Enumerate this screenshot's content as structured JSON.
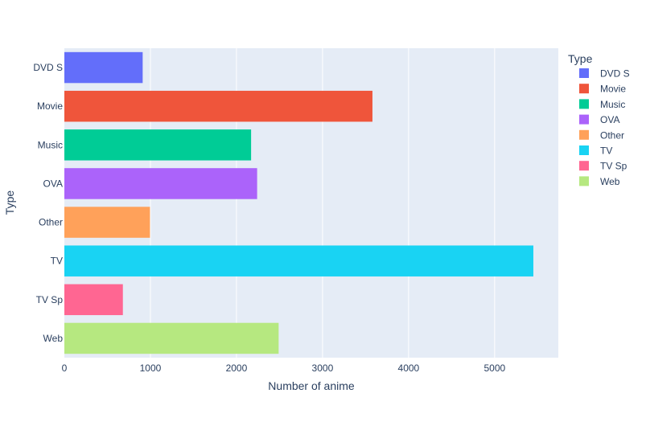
{
  "chart_data": {
    "type": "bar",
    "orientation": "horizontal",
    "categories": [
      "DVD S",
      "Movie",
      "Music",
      "OVA",
      "Other",
      "TV",
      "TV Sp",
      "Web"
    ],
    "values": [
      910,
      3580,
      2170,
      2240,
      995,
      5450,
      680,
      2490
    ],
    "colors": [
      "#636efa",
      "#ef553b",
      "#00cc96",
      "#ab63fa",
      "#ffa15a",
      "#19d3f3",
      "#ff6692",
      "#b6e880"
    ],
    "xlabel": "Number of anime",
    "ylabel": "Type",
    "xlim": [
      0,
      5740
    ],
    "xticks": [
      0,
      1000,
      2000,
      3000,
      4000,
      5000
    ],
    "xtick_labels": [
      "0",
      "1000",
      "2000",
      "3000",
      "4000",
      "5000"
    ],
    "grid": true,
    "legend": {
      "title": "Type",
      "placement": "right",
      "entries": [
        "DVD S",
        "Movie",
        "Music",
        "OVA",
        "Other",
        "TV",
        "TV Sp",
        "Web"
      ]
    },
    "colors_theme": {
      "plot_bg": "#e5ecf6",
      "grid": "#ffffff",
      "text": "#2a3f5f"
    }
  }
}
